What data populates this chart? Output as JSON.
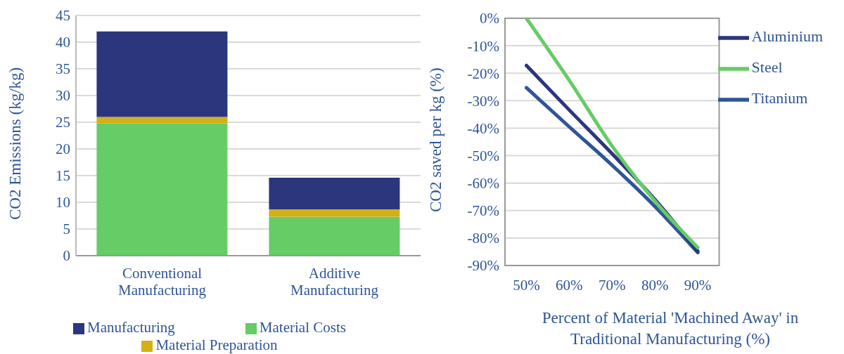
{
  "chart_data": [
    {
      "type": "bar",
      "ylabel": "CO2 Emissions (kg/kg)",
      "categories": [
        "Conventional Manufacturing",
        "Additive Manufacturing"
      ],
      "stacked": true,
      "series": [
        {
          "name": "Material Costs",
          "color": "#66cc66",
          "values": [
            24.8,
            7.3
          ]
        },
        {
          "name": "Material Preparation",
          "color": "#d4b016",
          "values": [
            1.2,
            1.4
          ]
        },
        {
          "name": "Manufacturing",
          "color": "#2b367d",
          "values": [
            16,
            5.9
          ]
        }
      ],
      "ylim": [
        0,
        45
      ],
      "yticks": [
        0,
        5,
        10,
        15,
        20,
        25,
        30,
        35,
        40,
        45
      ],
      "grid": "y",
      "legend": "bottom"
    },
    {
      "type": "line",
      "xlabel": "Percent of Material 'Machined Away' in Traditional Manufacturing (%)",
      "ylabel": "CO2 saved per kg (%)",
      "x": [
        50,
        60,
        70,
        80,
        90
      ],
      "series": [
        {
          "name": "Titanium",
          "color": "#2f5597",
          "values": [
            -25.3,
            -39.5,
            -53.5,
            -68.5,
            -85.3
          ]
        },
        {
          "name": "Aluminium",
          "color": "#2b367d",
          "values": [
            -17.2,
            -33.4,
            -49.3,
            -66,
            -84.8
          ]
        },
        {
          "name": "Steel",
          "color": "#66cc66",
          "values": [
            0,
            -22.6,
            -46.5,
            -66.6,
            -83.5
          ]
        }
      ],
      "xlim": [
        45,
        95
      ],
      "xticks": [
        {
          "value": 50,
          "label": "50%"
        },
        {
          "value": 60,
          "label": "60%"
        },
        {
          "value": 70,
          "label": "70%"
        },
        {
          "value": 80,
          "label": "80%"
        },
        {
          "value": 90,
          "label": "90%"
        }
      ],
      "ylim": [
        -90,
        0
      ],
      "yticks": [
        {
          "value": 0,
          "label": "0%"
        },
        {
          "value": -10,
          "label": "-10%"
        },
        {
          "value": -20,
          "label": "-20%"
        },
        {
          "value": -30,
          "label": "-30%"
        },
        {
          "value": -40,
          "label": "-40%"
        },
        {
          "value": -50,
          "label": "-50%"
        },
        {
          "value": -60,
          "label": "-60%"
        },
        {
          "value": -70,
          "label": "-70%"
        },
        {
          "value": -80,
          "label": "-80%"
        },
        {
          "value": -90,
          "label": "-90%"
        }
      ],
      "grid": "y",
      "legend": "top right",
      "marker": "none"
    }
  ]
}
